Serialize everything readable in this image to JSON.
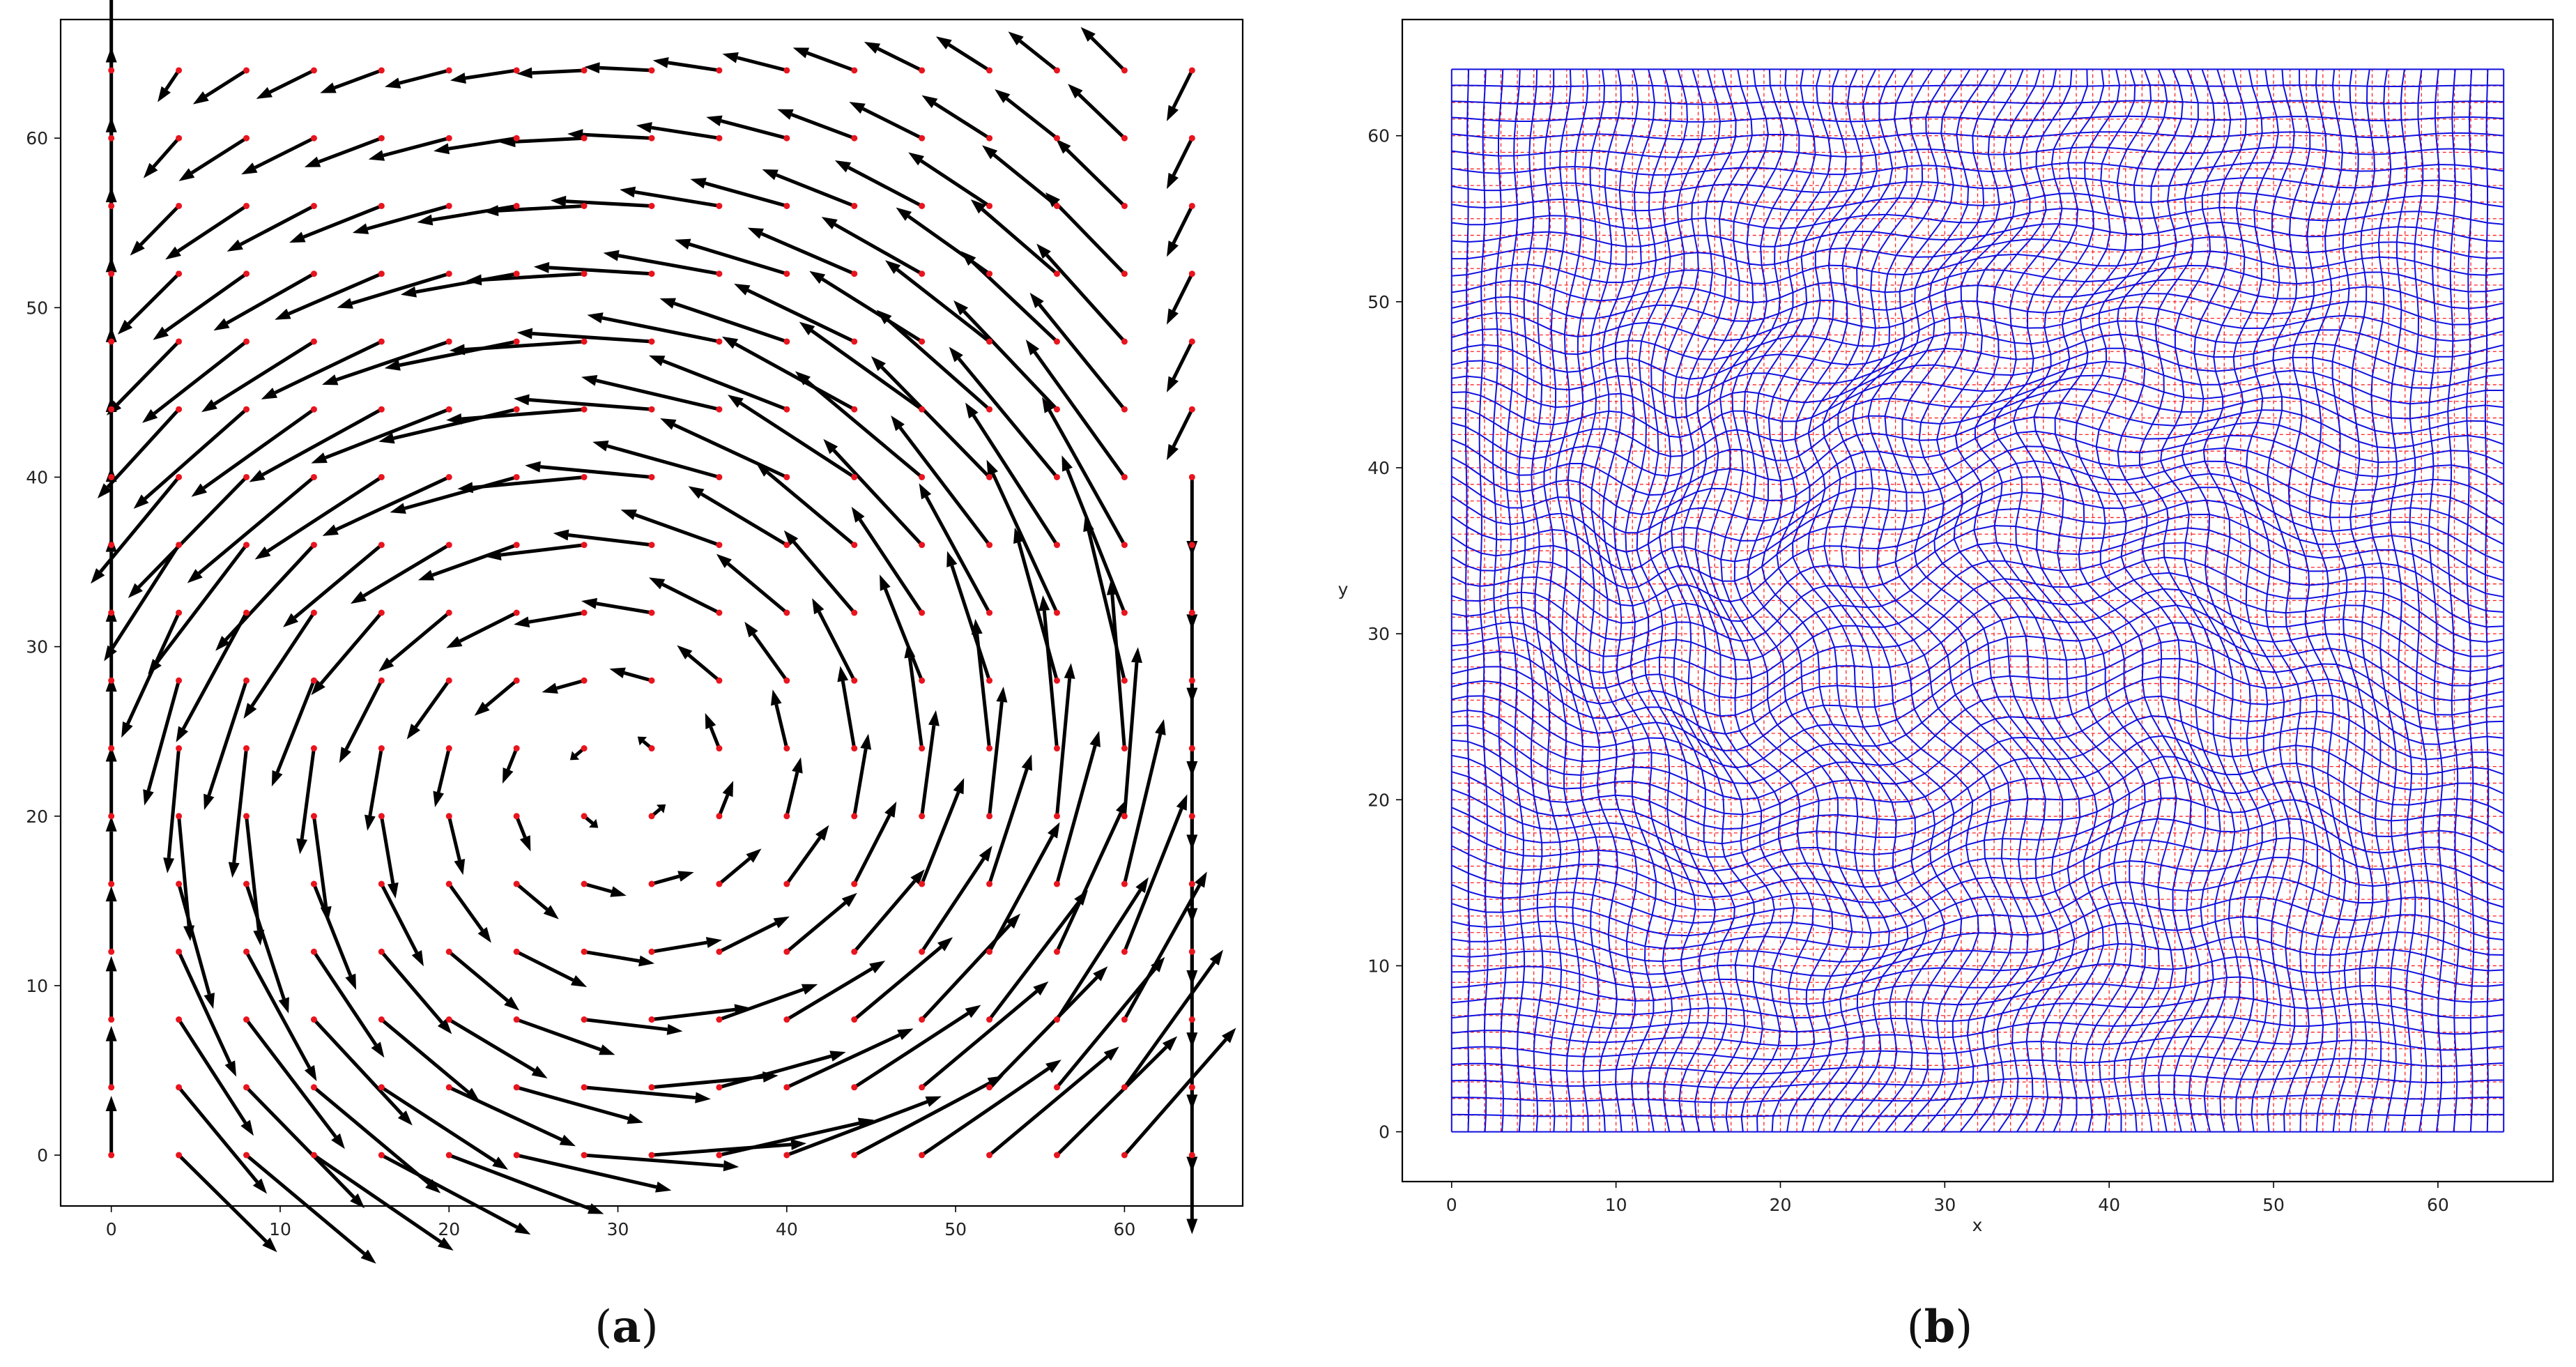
{
  "chart_data": [
    {
      "type": "quiver",
      "panel_label": "(a)",
      "panel_letter": "a",
      "xlim": [
        -3,
        67
      ],
      "ylim": [
        -3,
        67
      ],
      "xticks": [
        0,
        10,
        20,
        30,
        40,
        50,
        60
      ],
      "yticks": [
        0,
        10,
        20,
        30,
        40,
        50,
        60
      ],
      "xlabel": "",
      "ylabel": "",
      "grid": false,
      "point_color": "#e8141e",
      "arrow_color": "#000000",
      "grid_points": {
        "x_start": 0,
        "x_end": 64,
        "y_start": 0,
        "y_end": 64,
        "step": 4
      },
      "vortex": {
        "center": [
          30,
          22
        ],
        "radius_x": 36,
        "radius_y": 30,
        "max_speed": 10,
        "shear_top": 6
      }
    },
    {
      "type": "mesh",
      "panel_label": "(b)",
      "panel_letter": "b",
      "xlim": [
        -3,
        67
      ],
      "ylim": [
        -3,
        67
      ],
      "xticks": [
        0,
        10,
        20,
        30,
        40,
        50,
        60
      ],
      "yticks": [
        0,
        10,
        20,
        30,
        40,
        50,
        60
      ],
      "xlabel": "x",
      "ylabel": "y",
      "grid": false,
      "reference_grid": {
        "n": 64,
        "min": 0,
        "max": 64,
        "color": "#ff2020",
        "style": "dashed"
      },
      "deformed_grid": {
        "n": 64,
        "min": 0,
        "max": 64,
        "color": "#1010e0",
        "style": "solid"
      }
    }
  ]
}
